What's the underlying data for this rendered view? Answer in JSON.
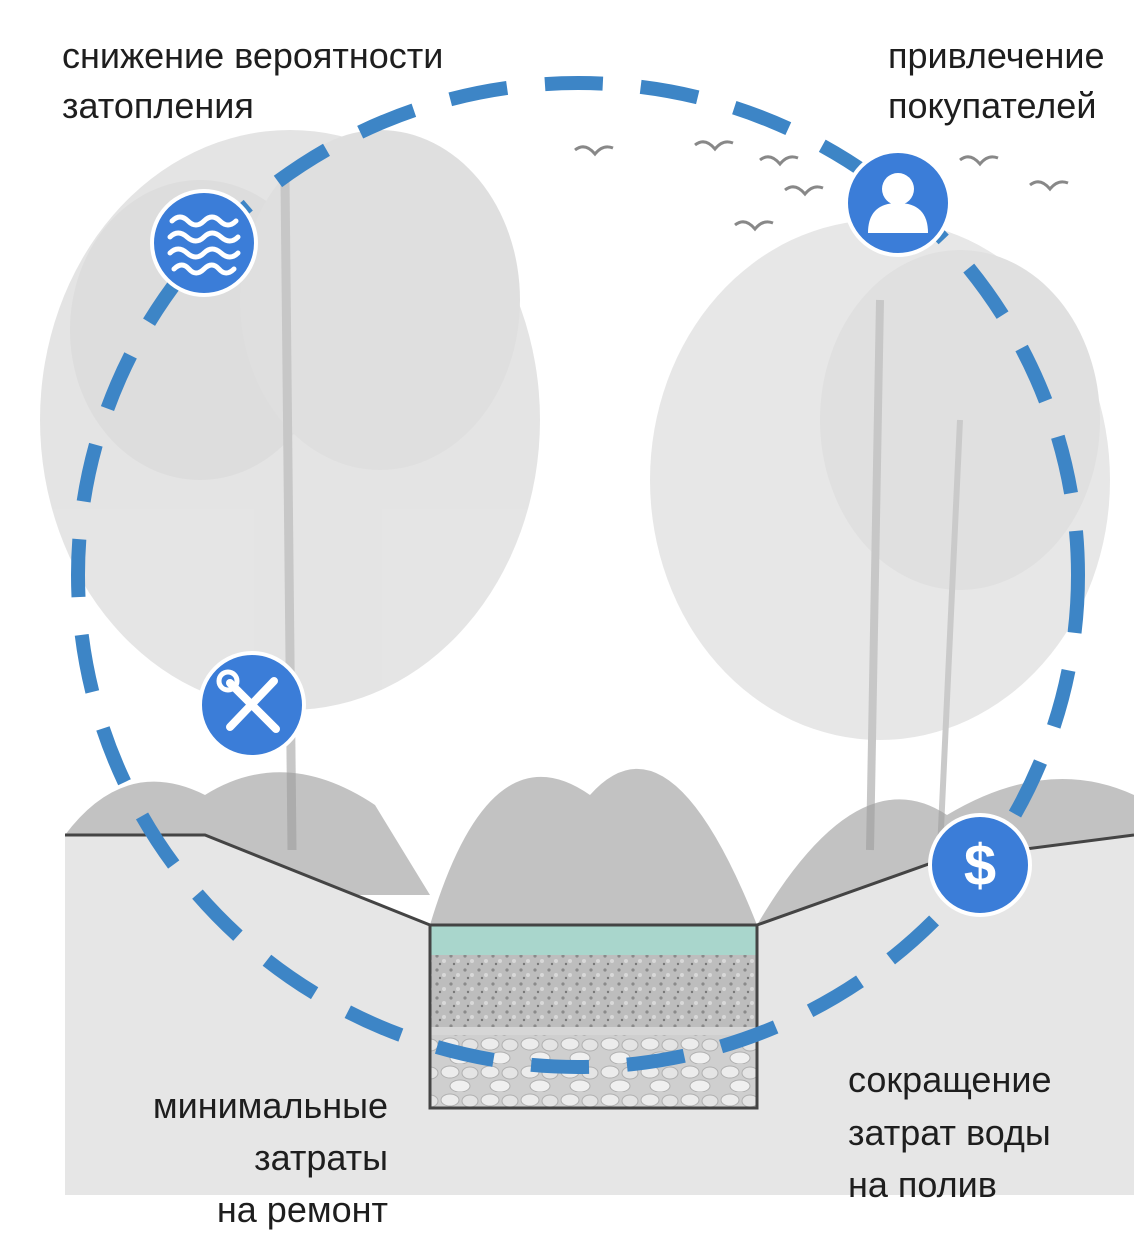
{
  "labels": [
    {
      "lines": [
        "снижение вероятности",
        "затопления"
      ]
    },
    {
      "lines": [
        "привлечение",
        "покупателей"
      ]
    },
    {
      "lines": [
        "минимальные",
        "затраты",
        "на ремонт"
      ]
    },
    {
      "lines": [
        "сокращение",
        "затрат воды",
        "на полив"
      ]
    }
  ]
}
